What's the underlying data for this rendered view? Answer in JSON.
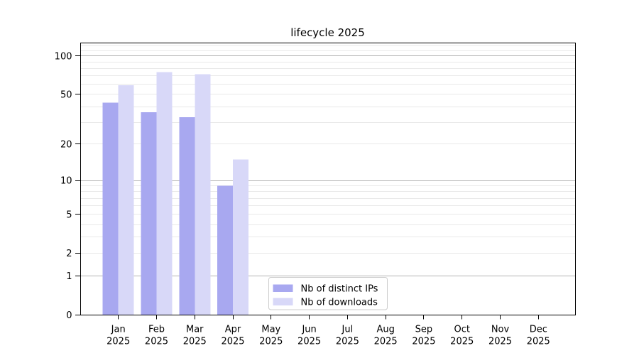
{
  "chart_data": {
    "type": "bar",
    "title": "lifecycle 2025",
    "categories": [
      "Jan 2025",
      "Feb 2025",
      "Mar 2025",
      "Apr 2025",
      "May 2025",
      "Jun 2025",
      "Jul 2025",
      "Aug 2025",
      "Sep 2025",
      "Oct 2025",
      "Nov 2025",
      "Dec 2025"
    ],
    "series": [
      {
        "name": "Nb of distinct IPs",
        "color": "#a8a8f0",
        "values": [
          43,
          36,
          33,
          9,
          0,
          0,
          0,
          0,
          0,
          0,
          0,
          0
        ]
      },
      {
        "name": "Nb of downloads",
        "color": "#d8d8f8",
        "values": [
          59,
          75,
          72,
          15,
          0,
          0,
          0,
          0,
          0,
          0,
          0,
          0
        ]
      }
    ],
    "xlabel": "",
    "ylabel": "",
    "yscale": "log(value+1)",
    "ylim": [
      0,
      128
    ],
    "y_ticks": [
      100,
      50,
      20,
      10,
      5,
      2,
      1,
      0
    ],
    "y_gridlines": {
      "major": [
        1,
        10,
        100
      ],
      "minor": [
        2,
        3,
        4,
        5,
        6,
        7,
        8,
        9,
        20,
        30,
        40,
        50,
        60,
        70,
        80,
        90,
        110,
        120
      ]
    },
    "grid": "horizontal",
    "legend": {
      "position": "lower center",
      "entries": [
        "Nb of distinct IPs",
        "Nb of downloads"
      ]
    }
  },
  "colors": {
    "bar_distinct_ips": "#a8a8f0",
    "bar_downloads": "#d8d8f8",
    "grid_major": "#b3b3b3",
    "grid_minor": "#e9e9e9",
    "axis": "#000000",
    "text": "#000000",
    "legend_border": "#cccccc",
    "background": "#ffffff"
  }
}
